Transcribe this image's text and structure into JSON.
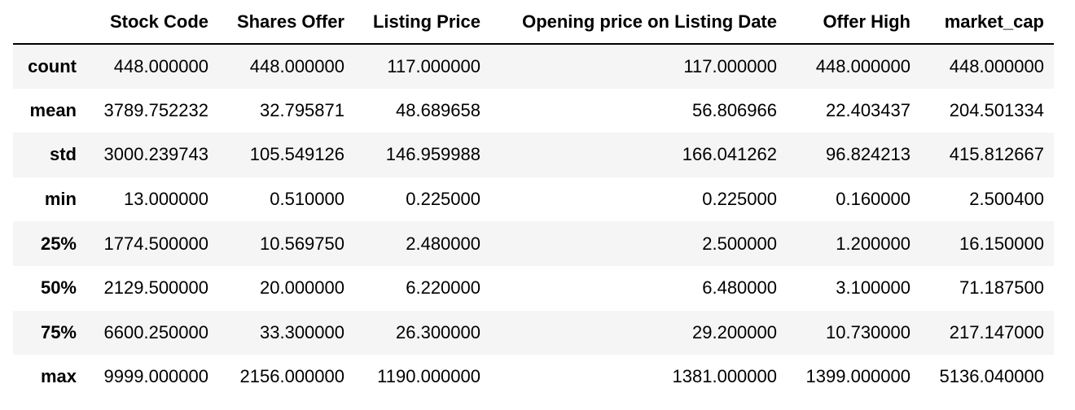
{
  "table": {
    "index_header": "",
    "columns": [
      "Stock Code",
      "Shares Offer",
      "Listing Price",
      "Opening price on Listing Date",
      "Offer High",
      "market_cap"
    ],
    "rows": [
      {
        "label": "count",
        "values": [
          "448.000000",
          "448.000000",
          "117.000000",
          "117.000000",
          "448.000000",
          "448.000000"
        ]
      },
      {
        "label": "mean",
        "values": [
          "3789.752232",
          "32.795871",
          "48.689658",
          "56.806966",
          "22.403437",
          "204.501334"
        ]
      },
      {
        "label": "std",
        "values": [
          "3000.239743",
          "105.549126",
          "146.959988",
          "166.041262",
          "96.824213",
          "415.812667"
        ]
      },
      {
        "label": "min",
        "values": [
          "13.000000",
          "0.510000",
          "0.225000",
          "0.225000",
          "0.160000",
          "2.500400"
        ]
      },
      {
        "label": "25%",
        "values": [
          "1774.500000",
          "10.569750",
          "2.480000",
          "2.500000",
          "1.200000",
          "16.150000"
        ]
      },
      {
        "label": "50%",
        "values": [
          "2129.500000",
          "20.000000",
          "6.220000",
          "6.480000",
          "3.100000",
          "71.187500"
        ]
      },
      {
        "label": "75%",
        "values": [
          "6600.250000",
          "33.300000",
          "26.300000",
          "29.200000",
          "10.730000",
          "217.147000"
        ]
      },
      {
        "label": "max",
        "values": [
          "9999.000000",
          "2156.000000",
          "1190.000000",
          "1381.000000",
          "1399.000000",
          "5136.040000"
        ]
      }
    ]
  }
}
